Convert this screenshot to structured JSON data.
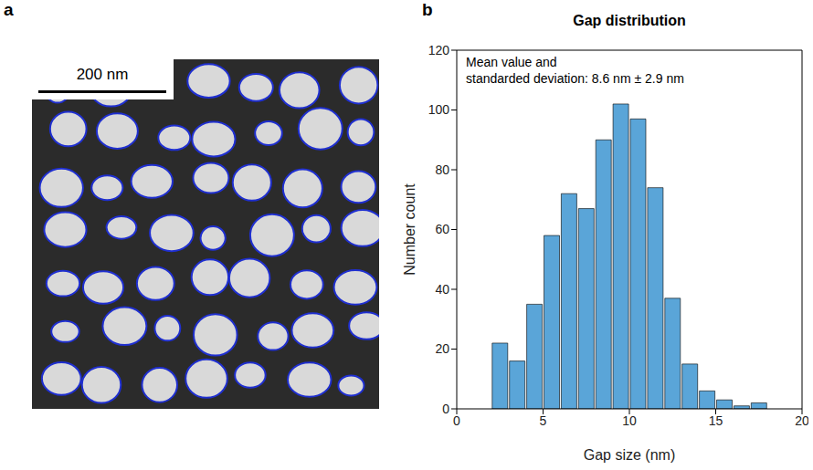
{
  "panel_labels": [
    "a",
    "b"
  ],
  "image": {
    "scale_bar": "200 nm"
  },
  "chart_data": {
    "type": "histogram",
    "title": "Gap distribution",
    "x_label": "Gap size (nm)",
    "y_label": "Number count",
    "annotation": [
      "Mean value and",
      "standarded deviation: 8.6 nm ± 2.9 nm"
    ],
    "bins": [
      2,
      3,
      4,
      5,
      6,
      7,
      8,
      9,
      10,
      11,
      12,
      13,
      14,
      15,
      16,
      17,
      18
    ],
    "values": [
      22,
      16,
      35,
      58,
      72,
      67,
      90,
      102,
      97,
      74,
      37,
      15,
      6,
      3,
      1,
      2
    ],
    "color": "#5aa5d8",
    "xlim": [
      0,
      20
    ],
    "xticks": [
      0,
      5,
      10,
      15,
      20
    ],
    "ylim": [
      0,
      120
    ],
    "yticks": [
      0,
      20,
      40,
      60,
      80,
      100,
      120
    ],
    "grid": false
  }
}
